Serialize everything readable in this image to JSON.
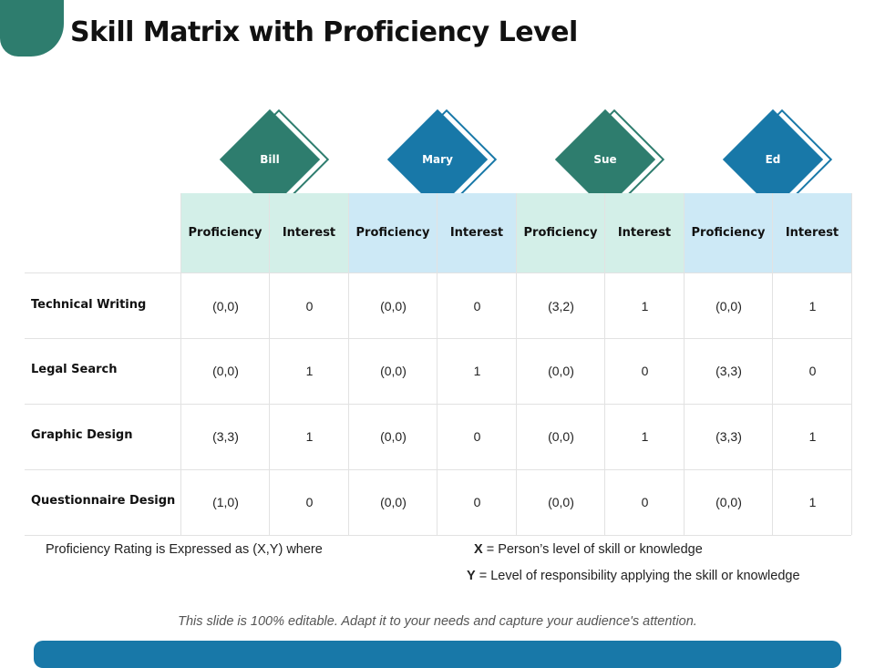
{
  "title": "Skill Matrix with Proficiency Level",
  "colors": {
    "green": "#2e7d6e",
    "blue": "#1878a8",
    "green_light": "#d3efe8",
    "blue_light": "#cde9f6"
  },
  "people": [
    {
      "name": "Bill",
      "color": "#2e7d6e"
    },
    {
      "name": "Mary",
      "color": "#1878a8"
    },
    {
      "name": "Sue",
      "color": "#2e7d6e"
    },
    {
      "name": "Ed",
      "color": "#1878a8"
    }
  ],
  "col_labels": [
    "Proficiency",
    "Interest"
  ],
  "rows": [
    {
      "skill": "Technical Writing",
      "values": [
        "(0,0)",
        "0",
        "(0,0)",
        "0",
        "(3,2)",
        "1",
        "(0,0)",
        "1"
      ]
    },
    {
      "skill": "Legal Search",
      "values": [
        "(0,0)",
        "1",
        "(0,0)",
        "1",
        "(0,0)",
        "0",
        "(3,3)",
        "0"
      ]
    },
    {
      "skill": "Graphic Design",
      "values": [
        "(3,3)",
        "1",
        "(0,0)",
        "0",
        "(0,0)",
        "1",
        "(3,3)",
        "1"
      ]
    },
    {
      "skill": "Questionnaire Design",
      "values": [
        "(1,0)",
        "0",
        "(0,0)",
        "0",
        "(0,0)",
        "0",
        "(0,0)",
        "1"
      ]
    }
  ],
  "notes": {
    "rating_intro": "Proficiency Rating is Expressed as (X,Y) where",
    "x_key": "X",
    "x_text": " = Person’s level of skill or knowledge",
    "y_key": "Y",
    "y_text": " = Level of responsibility applying the skill or knowledge"
  },
  "footer": "This slide is 100% editable. Adapt it to your needs and capture your audience's attention."
}
